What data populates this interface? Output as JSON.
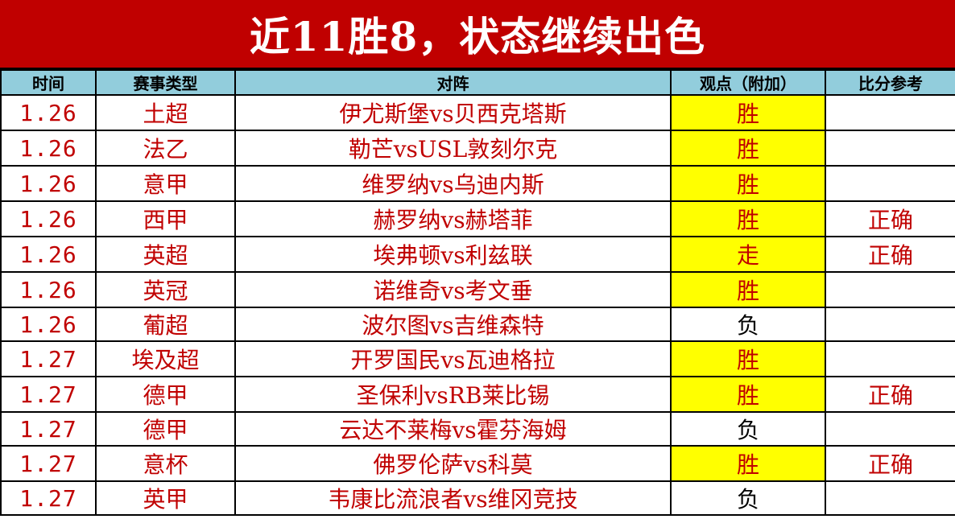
{
  "title": "近11胜8，状态继续出色",
  "headers": [
    "时间",
    "赛事类型",
    "对阵",
    "观点（附加）",
    "比分参考"
  ],
  "rows": [
    {
      "time": "1.26",
      "league": "土超",
      "match": "伊尤斯堡vs贝西克塔斯",
      "pick": "胜",
      "highlight": true,
      "score": ""
    },
    {
      "time": "1.26",
      "league": "法乙",
      "match": "勒芒vsUSL敦刻尔克",
      "pick": "胜",
      "highlight": true,
      "score": ""
    },
    {
      "time": "1.26",
      "league": "意甲",
      "match": "维罗纳vs乌迪内斯",
      "pick": "胜",
      "highlight": true,
      "score": ""
    },
    {
      "time": "1.26",
      "league": "西甲",
      "match": "赫罗纳vs赫塔菲",
      "pick": "胜",
      "highlight": true,
      "score": "正确"
    },
    {
      "time": "1.26",
      "league": "英超",
      "match": "埃弗顿vs利兹联",
      "pick": "走",
      "highlight": true,
      "score": "正确"
    },
    {
      "time": "1.26",
      "league": "英冠",
      "match": "诺维奇vs考文垂",
      "pick": "胜",
      "highlight": true,
      "score": ""
    },
    {
      "time": "1.26",
      "league": "葡超",
      "match": "波尔图vs吉维森特",
      "pick": "负",
      "highlight": false,
      "score": ""
    },
    {
      "time": "1.27",
      "league": "埃及超",
      "match": "开罗国民vs瓦迪格拉",
      "pick": "胜",
      "highlight": true,
      "score": ""
    },
    {
      "time": "1.27",
      "league": "德甲",
      "match": "圣保利vsRB莱比锡",
      "pick": "胜",
      "highlight": true,
      "score": "正确"
    },
    {
      "time": "1.27",
      "league": "德甲",
      "match": "云达不莱梅vs霍芬海姆",
      "pick": "负",
      "highlight": false,
      "score": ""
    },
    {
      "time": "1.27",
      "league": "意杯",
      "match": "佛罗伦萨vs科莫",
      "pick": "胜",
      "highlight": true,
      "score": "正确"
    },
    {
      "time": "1.27",
      "league": "英甲",
      "match": "韦康比流浪者vs维冈竞技",
      "pick": "负",
      "highlight": false,
      "score": ""
    }
  ],
  "colors": {
    "title_bg": "#C00000",
    "header_bg": "#92CDDC",
    "highlight": "#FFFF00",
    "text": "#C00000"
  }
}
